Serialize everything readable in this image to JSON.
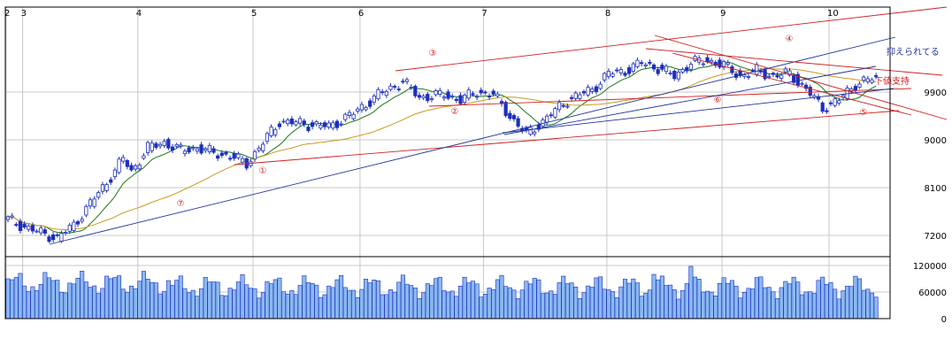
{
  "chart_data": [
    {
      "type": "candlestick",
      "x_axis": {
        "label": "",
        "month_ticks": [
          {
            "label": "2",
            "index": 0
          },
          {
            "label": "3",
            "index": 4
          },
          {
            "label": "4",
            "index": 32
          },
          {
            "label": "5",
            "index": 60
          },
          {
            "label": "6",
            "index": 86
          },
          {
            "label": "7",
            "index": 116
          },
          {
            "label": "8",
            "index": 146
          },
          {
            "label": "9",
            "index": 174
          },
          {
            "label": "10",
            "index": 200
          }
        ]
      },
      "y_axis": {
        "label": "",
        "scale": "linear",
        "range": [
          6800,
          11500
        ],
        "ticks": [
          "7200",
          "8100",
          "9000",
          "9900"
        ],
        "grid": true
      },
      "moving_average_colors": {
        "short": "#1a7a1a",
        "long": "#c89a20"
      },
      "candle_colors": {
        "up": "#ffffff",
        "down": "#1c2fbf",
        "outline": "#1c2fbf"
      },
      "annotations": {
        "labels": [
          "①",
          "②",
          "③",
          "④",
          "⑤",
          "⑥",
          "⑦"
        ],
        "notes": [
          "抑えられてる",
          "下値支持"
        ],
        "line_colors": {
          "red": "#cc2222",
          "blue": "#223399"
        }
      }
    },
    {
      "type": "bar",
      "series_name": "",
      "y_axis": {
        "range": [
          0,
          140000
        ],
        "ticks": [
          "0",
          "60000",
          "120000"
        ]
      },
      "bar_color": "#8ab8f0",
      "bar_outline": "#1c2fbf"
    }
  ]
}
